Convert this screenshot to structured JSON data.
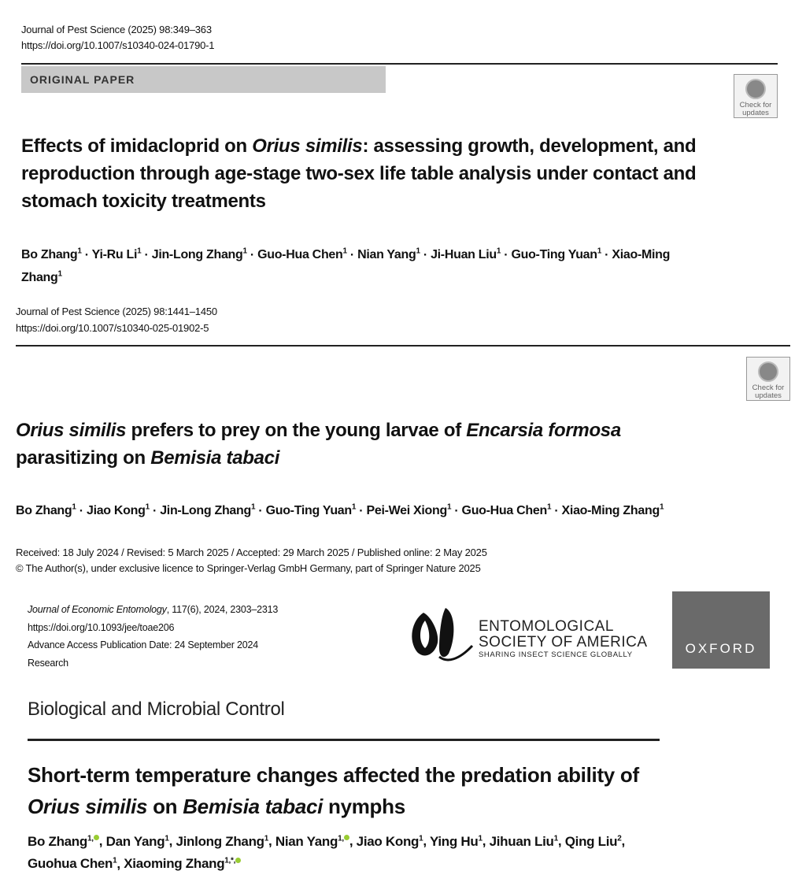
{
  "papers": [
    {
      "journal": "Journal of Pest Science (2025) 98:349–363",
      "doi": "https://doi.org/10.1007/s10340-024-01790-1",
      "label": "ORIGINAL PAPER",
      "badge": "Check for updates",
      "title": [
        {
          "text": "Effects of imidacloprid on ",
          "italic": false
        },
        {
          "text": "Orius similis",
          "italic": true
        },
        {
          "text": ": assessing growth, development, and reproduction through age-stage two-sex life table analysis under contact and stomach toxicity treatments",
          "italic": false
        }
      ],
      "author_separator": " · ",
      "authors": [
        {
          "name": "Bo Zhang",
          "sup": "1"
        },
        {
          "name": "Yi-Ru Li",
          "sup": "1"
        },
        {
          "name": "Jin-Long Zhang",
          "sup": "1"
        },
        {
          "name": "Guo-Hua Chen",
          "sup": "1"
        },
        {
          "name": "Nian Yang",
          "sup": "1"
        },
        {
          "name": "Ji-Huan Liu",
          "sup": "1"
        },
        {
          "name": "Guo-Ting Yuan",
          "sup": "1"
        },
        {
          "name": "Xiao-Ming Zhang",
          "sup": "1"
        }
      ]
    },
    {
      "journal": "Journal of Pest Science (2025) 98:1441–1450",
      "doi": "https://doi.org/10.1007/s10340-025-01902-5",
      "badge": "Check for updates",
      "title": [
        {
          "text": "Orius similis",
          "italic": true
        },
        {
          "text": " prefers to prey on the young larvae of ",
          "italic": false
        },
        {
          "text": "Encarsia formosa",
          "italic": true
        },
        {
          "text": " parasitizing on ",
          "italic": false
        },
        {
          "text": "Bemisia tabaci",
          "italic": true
        }
      ],
      "author_separator": " · ",
      "authors": [
        {
          "name": "Bo Zhang",
          "sup": "1"
        },
        {
          "name": "Jiao Kong",
          "sup": "1"
        },
        {
          "name": "Jin-Long Zhang",
          "sup": "1"
        },
        {
          "name": "Guo-Ting Yuan",
          "sup": "1"
        },
        {
          "name": "Pei-Wei Xiong",
          "sup": "1"
        },
        {
          "name": "Guo-Hua Chen",
          "sup": "1"
        },
        {
          "name": "Xiao-Ming Zhang",
          "sup": "1"
        }
      ],
      "dates": "Received: 18 July 2024 / Revised: 5 March 2025 / Accepted: 29 March 2025 / Published online: 2 May 2025",
      "copyright": "© The Author(s), under exclusive licence to Springer-Verlag GmbH Germany, part of Springer Nature 2025"
    },
    {
      "journal": [
        {
          "text": "Journal of Economic Entomology",
          "italic": true
        },
        {
          "text": ", 117(6), 2024, 2303–2313",
          "italic": false
        }
      ],
      "doi": "https://doi.org/10.1093/jee/toae206",
      "access": "Advance Access Publication Date: 24 September 2024",
      "article_type": "Research",
      "society": [
        "ENTOMOLOGICAL",
        "SOCIETY OF AMERICA"
      ],
      "society_tagline": "SHARING INSECT SCIENCE GLOBALLY",
      "publisher": "OXFORD",
      "section": "Biological and Microbial Control",
      "title": [
        {
          "text": "Short-term temperature changes affected the predation ability of ",
          "italic": false
        },
        {
          "text": "Orius similis",
          "italic": true
        },
        {
          "text": " on ",
          "italic": false
        },
        {
          "text": "Bemisia tabaci",
          "italic": true
        },
        {
          "text": " nymphs",
          "italic": false
        }
      ],
      "author_separator": ", ",
      "authors": [
        {
          "name": "Bo Zhang",
          "sup": "1,",
          "orcid": true
        },
        {
          "name": "Dan Yang",
          "sup": "1"
        },
        {
          "name": "Jinlong Zhang",
          "sup": "1"
        },
        {
          "name": "Nian Yang",
          "sup": "1,",
          "orcid": true
        },
        {
          "name": "Jiao Kong",
          "sup": "1"
        },
        {
          "name": "Ying Hu",
          "sup": "1"
        },
        {
          "name": "Jihuan Liu",
          "sup": "1"
        },
        {
          "name": "Qing Liu",
          "sup": "2"
        },
        {
          "name": "Guohua Chen",
          "sup": "1"
        },
        {
          "name": "Xiaoming Zhang",
          "sup": "1,*,",
          "orcid": true
        }
      ]
    }
  ]
}
